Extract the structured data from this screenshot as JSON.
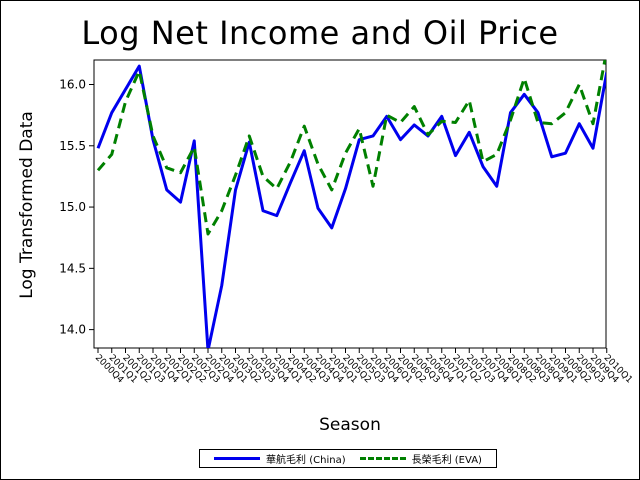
{
  "chart_data": {
    "type": "line",
    "title": "Log Net Income and Oil Price",
    "xlabel": "Season",
    "ylabel": "Log Transformed Data",
    "ylim": [
      13.85,
      16.2
    ],
    "yticks": [
      14.0,
      14.5,
      15.0,
      15.5,
      16.0
    ],
    "grid": false,
    "legend_position": "bottom",
    "categories": [
      "2000Q4",
      "2001Q1",
      "2001Q2",
      "2001Q3",
      "2001Q4",
      "2002Q1",
      "2002Q2",
      "2002Q3",
      "2002Q4",
      "2003Q1",
      "2003Q2",
      "2003Q3",
      "2003Q4",
      "2004Q1",
      "2004Q2",
      "2004Q3",
      "2004Q4",
      "2005Q1",
      "2005Q2",
      "2005Q3",
      "2005Q4",
      "2006Q1",
      "2006Q2",
      "2006Q3",
      "2006Q4",
      "2007Q1",
      "2007Q2",
      "2007Q3",
      "2007Q4",
      "2008Q1",
      "2008Q2",
      "2008Q3",
      "2008Q4",
      "2009Q1",
      "2009Q2",
      "2009Q3",
      "2009Q4",
      "2010Q1"
    ],
    "x_tick_labels": [
      "2000Q4",
      "2001Q1",
      "2001Q2",
      "2001Q3",
      "2001Q4",
      "2002Q1",
      "2002Q2",
      "2002Q3",
      "2002Q4",
      "2003Q1",
      "2003Q2",
      "2003Q3",
      "2003Q4",
      "2004Q1",
      "2004Q2",
      "2004Q3",
      "2004Q4",
      "2005Q1",
      "2005Q2",
      "2005Q3",
      "2005Q4",
      "2006Q1",
      "2006Q2",
      "2006Q3",
      "2006Q4",
      "2007Q1",
      "2007Q2",
      "2007Q3",
      "2007Q4",
      "2008Q1",
      "2008Q2",
      "2008Q3",
      "2008Q4",
      "2009Q1",
      "2009Q2",
      "2009Q3",
      "2009Q4",
      "2010Q1"
    ],
    "series": [
      {
        "name": "華航毛利 (China)",
        "color": "#0000ee",
        "style": "solid",
        "values": [
          15.48,
          15.77,
          15.96,
          16.15,
          15.55,
          15.14,
          15.04,
          15.54,
          13.83,
          14.36,
          15.14,
          15.53,
          14.97,
          14.93,
          15.2,
          15.46,
          14.99,
          14.83,
          15.15,
          15.55,
          15.58,
          15.74,
          15.55,
          15.67,
          15.58,
          15.74,
          15.42,
          15.61,
          15.33,
          15.17,
          15.77,
          15.92,
          15.77,
          15.41,
          15.44,
          15.68,
          15.48,
          16.1
        ]
      },
      {
        "name": "長榮毛利 (EVA)",
        "color": "#008000",
        "style": "dashed",
        "values": [
          15.3,
          15.43,
          15.86,
          16.11,
          15.58,
          15.32,
          15.28,
          15.49,
          14.78,
          14.97,
          15.26,
          15.58,
          15.25,
          15.15,
          15.37,
          15.66,
          15.35,
          15.14,
          15.44,
          15.64,
          15.17,
          15.75,
          15.69,
          15.82,
          15.59,
          15.7,
          15.69,
          15.87,
          15.37,
          15.43,
          15.71,
          16.05,
          15.69,
          15.68,
          15.77,
          16.0,
          15.68,
          16.28
        ]
      }
    ]
  },
  "legend": {
    "china_label": "華航毛利 (China)",
    "eva_label": "長榮毛利 (EVA)"
  }
}
